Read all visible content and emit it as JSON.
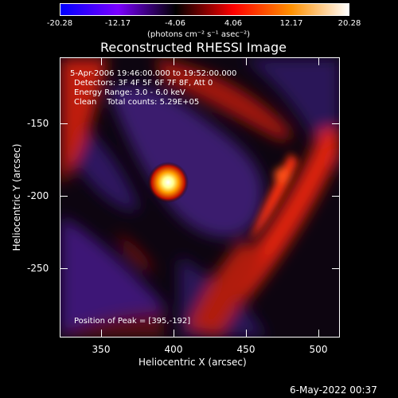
{
  "colorbar": {
    "ticks": [
      "-20.28",
      "-12.17",
      "-4.06",
      "4.06",
      "12.17",
      "20.28"
    ],
    "units": "(photons cm⁻² s⁻¹ asec⁻²)",
    "range": [
      -20.28,
      20.28
    ],
    "colors": [
      "#0000ff",
      "#7a00ff",
      "#000000",
      "#ff0000",
      "#ff9000",
      "#ffffff"
    ]
  },
  "title": "Reconstructed RHESSI Image",
  "annotations": {
    "time": "5-Apr-2006 19:46:00.000 to 19:52:00.000",
    "detectors": "Detectors: 3F 4F 5F 6F 7F 8F, Att 0",
    "energy": "Energy Range: 3.0 - 6.0 keV",
    "clean": "Clean    Total counts: 5.29E+05",
    "peak": "Position of Peak = [395,-192]"
  },
  "axes": {
    "x_ticks": [
      "350",
      "400",
      "450",
      "500"
    ],
    "y_ticks": [
      "-150",
      "-200",
      "-250"
    ],
    "xlabel": "Heliocentric X (arcsec)",
    "ylabel": "Heliocentric Y (arcsec)",
    "xlim": [
      320,
      514
    ],
    "ylim": [
      -300,
      -106
    ]
  },
  "footer": {
    "timestamp": "6-May-2022 00:37"
  }
}
